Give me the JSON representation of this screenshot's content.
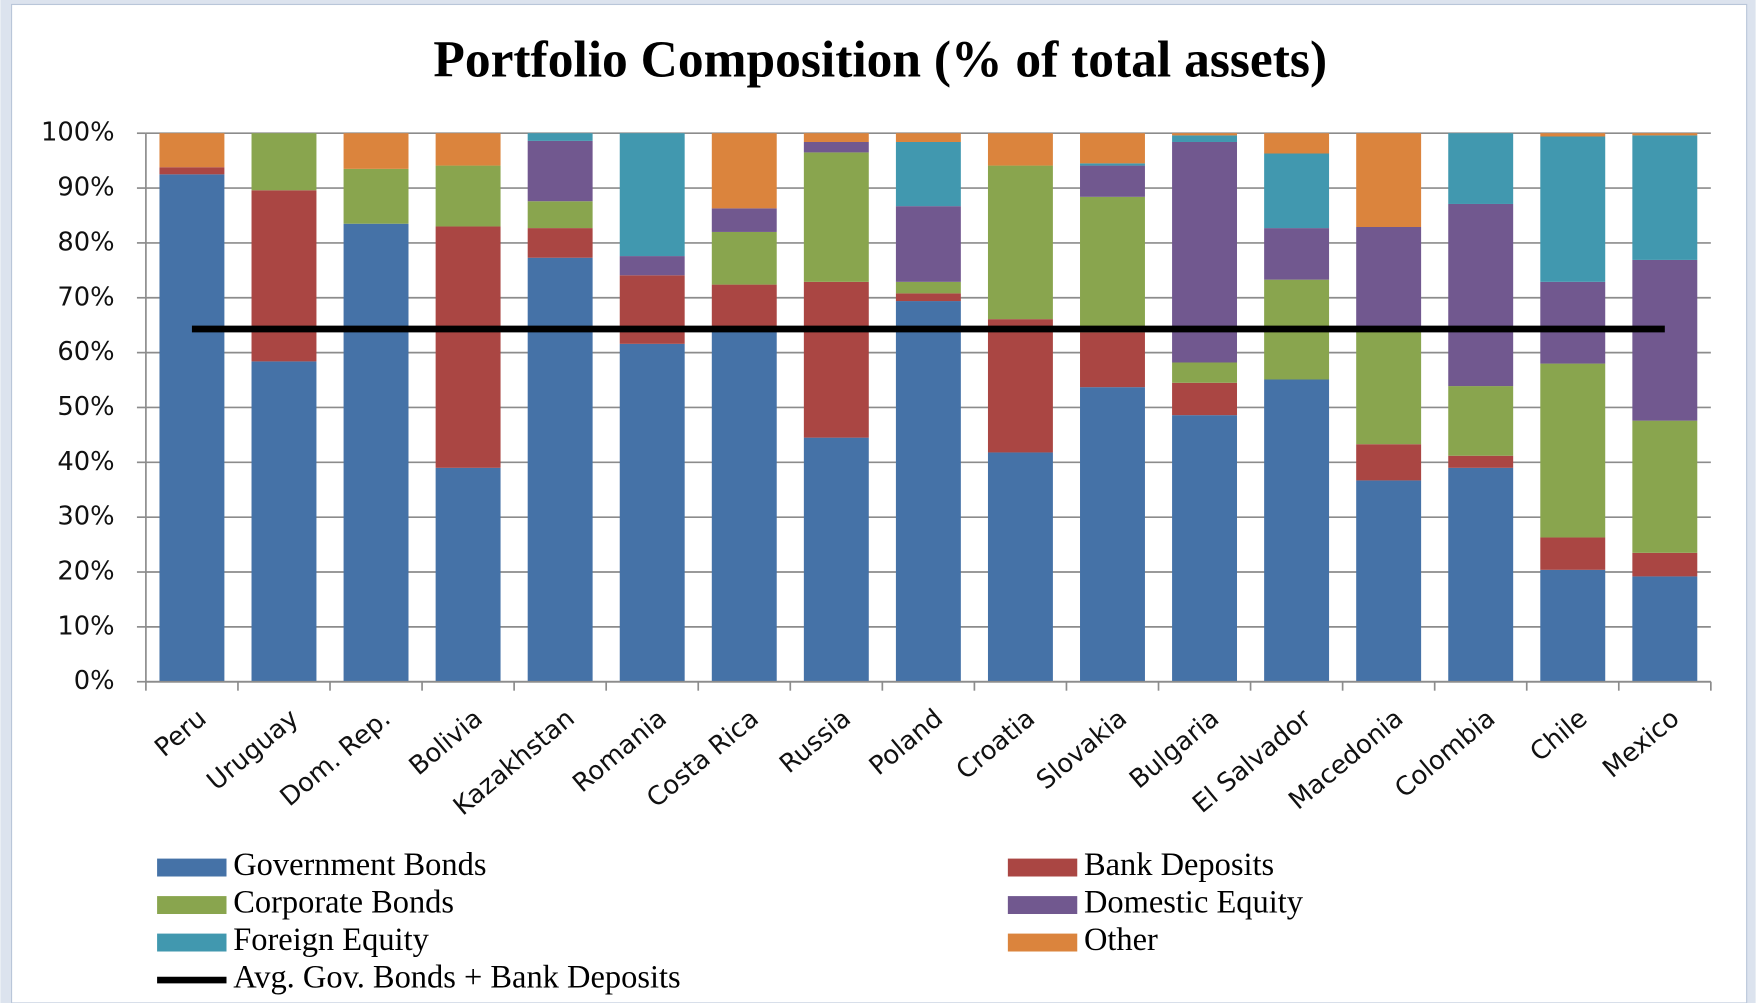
{
  "chart_data": {
    "type": "bar",
    "stacked": true,
    "title": "Portfolio Composition (% of total assets)",
    "categories": [
      "Peru",
      "Uruguay",
      "Dom. Rep.",
      "Bolivia",
      "Kazakhstan",
      "Romania",
      "Costa Rica",
      "Russia",
      "Poland",
      "Croatia",
      "Slovakia",
      "Bulgaria",
      "El Salvador",
      "Macedonia",
      "Colombia",
      "Chile",
      "Mexico"
    ],
    "series": [
      {
        "name": "Government Bonds",
        "color": "#4572a7",
        "values": [
          92.5,
          58.4,
          83.5,
          39,
          77.3,
          61.6,
          64,
          44.5,
          69.4,
          41.8,
          53.7,
          48.6,
          55.1,
          36.7,
          39,
          20.4,
          19.2
        ]
      },
      {
        "name": "Bank Deposits",
        "color": "#aa4643",
        "values": [
          1.3,
          31.2,
          0,
          44,
          5.4,
          12.5,
          8.4,
          28.4,
          1.4,
          24.3,
          10,
          5.9,
          0,
          6.6,
          2.2,
          5.9,
          4.3
        ]
      },
      {
        "name": "Corporate Bonds",
        "color": "#89a54e",
        "values": [
          0,
          10.4,
          10,
          11.1,
          4.9,
          0,
          9.6,
          23.6,
          2.1,
          28,
          24.7,
          3.7,
          18.2,
          20.6,
          12.7,
          31.7,
          24.1
        ]
      },
      {
        "name": "Domestic Equity",
        "color": "#71588f",
        "values": [
          0,
          0,
          0,
          0,
          11,
          3.5,
          4.3,
          1.9,
          13.8,
          0,
          5.7,
          40.2,
          9.4,
          19,
          33.2,
          14.9,
          29.3
        ]
      },
      {
        "name": "Foreign Equity",
        "color": "#4198af",
        "values": [
          0,
          0,
          0,
          0,
          1.4,
          22.4,
          0,
          0,
          11.7,
          0,
          0.4,
          1.2,
          13.6,
          0,
          12.9,
          26.5,
          22.7
        ]
      },
      {
        "name": "Other",
        "color": "#db843d",
        "values": [
          6.2,
          0,
          6.5,
          5.9,
          0,
          0,
          13.7,
          1.6,
          1.6,
          5.9,
          5.5,
          0.4,
          3.7,
          17.1,
          0,
          0.6,
          0.4
        ]
      },
      {
        "name": "Avg. Gov. Bonds + Bank Deposits",
        "type": "line",
        "color": "#000000",
        "values": [
          64.3,
          64.3,
          64.3,
          64.3,
          64.3,
          64.3,
          64.3,
          64.3,
          64.3,
          64.3,
          64.3,
          64.3,
          64.3,
          64.3,
          64.3,
          64.3,
          64.3
        ]
      }
    ],
    "ylim": [
      0,
      100
    ],
    "yticks": [
      {
        "value": 0,
        "label": "0%"
      },
      {
        "value": 10,
        "label": "10%"
      },
      {
        "value": 20,
        "label": "20%"
      },
      {
        "value": 30,
        "label": "30%"
      },
      {
        "value": 40,
        "label": "40%"
      },
      {
        "value": 50,
        "label": "50%"
      },
      {
        "value": 60,
        "label": "60%"
      },
      {
        "value": 70,
        "label": "70%"
      },
      {
        "value": 80,
        "label": "80%"
      },
      {
        "value": 90,
        "label": "90%"
      },
      {
        "value": 100,
        "label": "100%"
      }
    ],
    "grid": true
  }
}
